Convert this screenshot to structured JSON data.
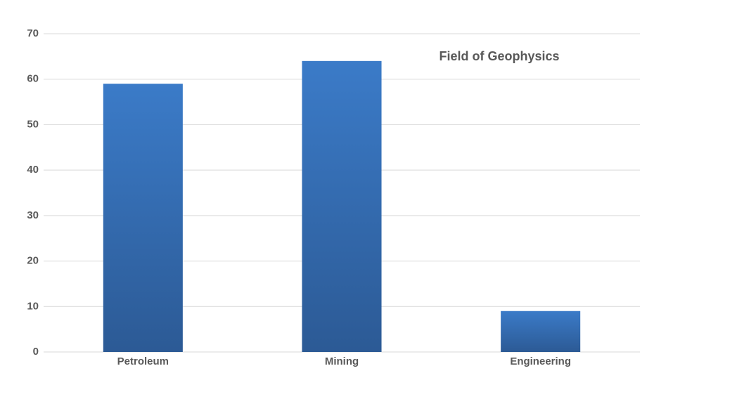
{
  "chart_data": {
    "type": "bar",
    "title": "Field of Geophysics",
    "categories": [
      "Petroleum",
      "Mining",
      "Engineering"
    ],
    "values": [
      59,
      64,
      9
    ],
    "color": "#3b7bc8",
    "ylim": [
      0,
      70
    ],
    "yticks": [
      0,
      10,
      20,
      30,
      40,
      50,
      60,
      70
    ],
    "grid": true
  }
}
